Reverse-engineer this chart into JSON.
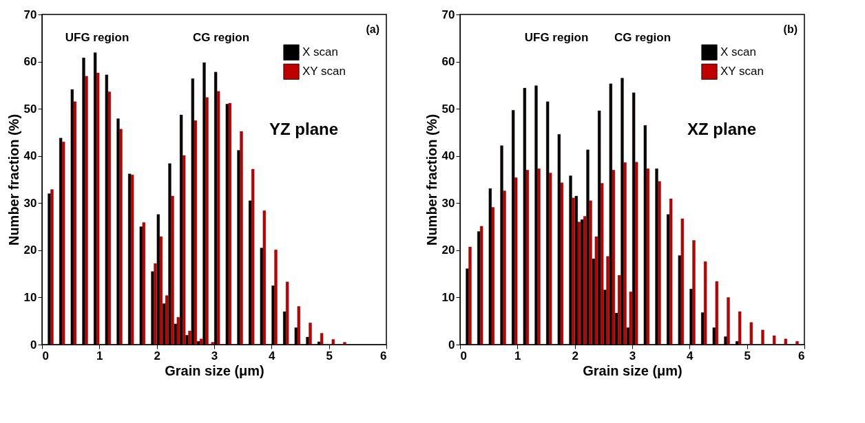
{
  "chart_data": [
    {
      "type": "bar",
      "xlabel": "Grain size (μm)",
      "ylabel": "Number fraction (%)",
      "xlim": [
        0,
        6
      ],
      "xticks": [
        0,
        1,
        2,
        3,
        4,
        5,
        6
      ],
      "ylim": [
        0,
        70
      ],
      "yticks": [
        0,
        10,
        20,
        30,
        40,
        50,
        60,
        70
      ],
      "legend": "top right",
      "annotations": [
        "UFG region",
        "CG region",
        "YZ plane",
        "(a)"
      ],
      "series": [
        {
          "name": "X scan",
          "color": "#000000",
          "x": [
            0.15,
            0.35,
            0.55,
            0.75,
            0.95,
            1.15,
            1.35,
            1.55,
            1.75,
            1.95,
            2.05,
            2.15,
            2.25,
            2.35,
            2.45,
            2.55,
            2.65,
            2.75,
            2.85,
            2.95,
            3.05,
            3.25,
            3.45,
            3.65,
            3.85,
            4.05,
            4.25,
            4.45,
            4.65,
            4.85
          ],
          "values": [
            32.0,
            43.8,
            54.1,
            60.8,
            61.9,
            57.2,
            47.9,
            36.2,
            25.0,
            15.5,
            27.6,
            8.7,
            38.4,
            4.4,
            48.7,
            2.0,
            56.4,
            0.7,
            59.8,
            null,
            57.8,
            51.0,
            41.2,
            30.5,
            20.5,
            12.5,
            7.0,
            3.6,
            1.6,
            0.6
          ]
        },
        {
          "name": "XY scan",
          "color": "#c00000",
          "x": [
            0.15,
            0.35,
            0.55,
            0.75,
            0.95,
            1.15,
            1.35,
            1.55,
            1.75,
            1.95,
            2.05,
            2.15,
            2.25,
            2.35,
            2.45,
            2.55,
            2.65,
            2.75,
            2.85,
            2.95,
            3.05,
            3.25,
            3.45,
            3.65,
            3.85,
            4.05,
            4.25,
            4.45,
            4.65,
            4.85,
            5.05,
            5.25
          ],
          "values": [
            32.9,
            43.0,
            51.5,
            56.9,
            57.6,
            53.6,
            45.7,
            36.0,
            25.9,
            17.2,
            22.9,
            10.4,
            31.5,
            5.8,
            40.1,
            2.9,
            47.5,
            1.2,
            52.4,
            0.5,
            53.7,
            51.2,
            45.2,
            37.2,
            28.4,
            20.1,
            13.3,
            8.1,
            4.6,
            2.4,
            1.1,
            0.5
          ]
        }
      ]
    },
    {
      "type": "bar",
      "xlabel": "Grain size (μm)",
      "ylabel": "Number fraction (%)",
      "xlim": [
        0,
        6
      ],
      "xticks": [
        0,
        1,
        2,
        3,
        4,
        5,
        6
      ],
      "ylim": [
        0,
        70
      ],
      "yticks": [
        0,
        10,
        20,
        30,
        40,
        50,
        60,
        70
      ],
      "legend": "top right",
      "annotations": [
        "UFG region",
        "CG region",
        "XZ plane",
        "(b)"
      ],
      "series": [
        {
          "name": "X scan",
          "color": "#000000",
          "x": [
            0.15,
            0.35,
            0.55,
            0.75,
            0.95,
            1.15,
            1.35,
            1.55,
            1.75,
            1.95,
            2.05,
            2.15,
            2.25,
            2.35,
            2.45,
            2.55,
            2.65,
            2.75,
            2.85,
            2.95,
            3.05,
            3.25,
            3.45,
            3.65,
            3.85,
            4.05,
            4.25,
            4.45,
            4.65,
            4.85
          ],
          "values": [
            16.1,
            24.0,
            33.1,
            42.2,
            49.7,
            54.4,
            54.9,
            51.5,
            44.6,
            35.8,
            31.5,
            26.5,
            41.3,
            18.2,
            49.6,
            11.6,
            55.3,
            6.7,
            56.5,
            3.6,
            53.4,
            46.5,
            37.3,
            27.6,
            18.9,
            11.8,
            6.8,
            3.6,
            1.7,
            0.7
          ]
        },
        {
          "name": "XY scan",
          "color": "#c00000",
          "x": [
            0.15,
            0.35,
            0.55,
            0.75,
            0.95,
            1.15,
            1.35,
            1.55,
            1.75,
            1.95,
            2.05,
            2.15,
            2.25,
            2.35,
            2.45,
            2.55,
            2.65,
            2.75,
            2.85,
            2.95,
            3.05,
            3.25,
            3.45,
            3.65,
            3.85,
            4.05,
            4.25,
            4.45,
            4.65,
            4.85,
            5.05,
            5.25,
            5.45,
            5.65,
            5.85
          ],
          "values": [
            20.7,
            25.1,
            29.1,
            32.6,
            35.4,
            37.0,
            37.3,
            36.4,
            34.3,
            31.1,
            26.0,
            27.2,
            30.5,
            22.9,
            34.2,
            18.7,
            37.0,
            14.7,
            38.6,
            11.2,
            38.7,
            37.3,
            34.6,
            30.9,
            26.7,
            22.1,
            17.6,
            13.4,
            10.0,
            7.0,
            4.7,
            3.1,
            1.9,
            1.2,
            0.7
          ]
        }
      ]
    }
  ]
}
